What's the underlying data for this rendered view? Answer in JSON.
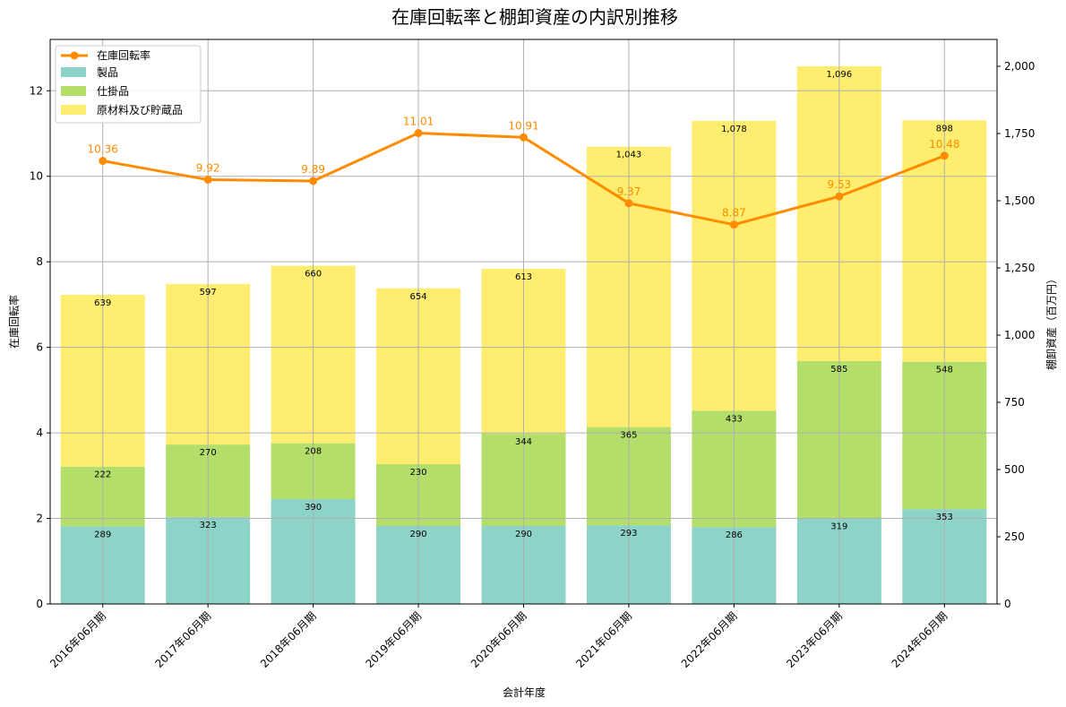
{
  "chart_data": {
    "type": "bar",
    "title": "在庫回転率と棚卸資産の内訳別推移",
    "xlabel": "会計年度",
    "ylabel_left": "在庫回転率",
    "ylabel_right": "棚卸資産（百万円）",
    "categories": [
      "2016年06月期",
      "2017年06月期",
      "2018年06月期",
      "2019年06月期",
      "2020年06月期",
      "2021年06月期",
      "2022年06月期",
      "2023年06月期",
      "2024年06月期"
    ],
    "left_ylim": [
      0,
      13.2
    ],
    "left_ticks": [
      0,
      2,
      4,
      6,
      8,
      10,
      12
    ],
    "right_ylim": [
      0,
      2100
    ],
    "right_ticks": [
      0,
      250,
      500,
      750,
      1000,
      1250,
      1500,
      1750,
      2000
    ],
    "right_tick_labels": [
      "0",
      "250",
      "500",
      "750",
      "1,000",
      "1,250",
      "1,500",
      "1,750",
      "2,000"
    ],
    "grid": true,
    "legend_position": "top-left",
    "bar_series": [
      {
        "name": "製品",
        "color": "#8dd3c7",
        "values": [
          289,
          323,
          390,
          290,
          290,
          293,
          286,
          319,
          353
        ],
        "labels": [
          "289",
          "323",
          "390",
          "290",
          "290",
          "293",
          "286",
          "319",
          "353"
        ]
      },
      {
        "name": "仕掛品",
        "color": "#b3de69",
        "values": [
          222,
          270,
          208,
          230,
          344,
          365,
          433,
          585,
          548
        ],
        "labels": [
          "222",
          "270",
          "208",
          "230",
          "344",
          "365",
          "433",
          "585",
          "548"
        ]
      },
      {
        "name": "原材料及び貯蔵品",
        "color": "#ffed6f",
        "values": [
          639,
          597,
          660,
          654,
          613,
          1043,
          1078,
          1096,
          898
        ],
        "labels": [
          "639",
          "597",
          "660",
          "654",
          "613",
          "1,043",
          "1,078",
          "1,096",
          "898"
        ]
      }
    ],
    "line_series": {
      "name": "在庫回転率",
      "color": "#ff8c00",
      "values": [
        10.36,
        9.92,
        9.89,
        11.01,
        10.91,
        9.37,
        8.87,
        9.53,
        10.48
      ],
      "labels": [
        "10.36",
        "9.92",
        "9.89",
        "11.01",
        "10.91",
        "9.37",
        "8.87",
        "9.53",
        "10.48"
      ]
    }
  }
}
